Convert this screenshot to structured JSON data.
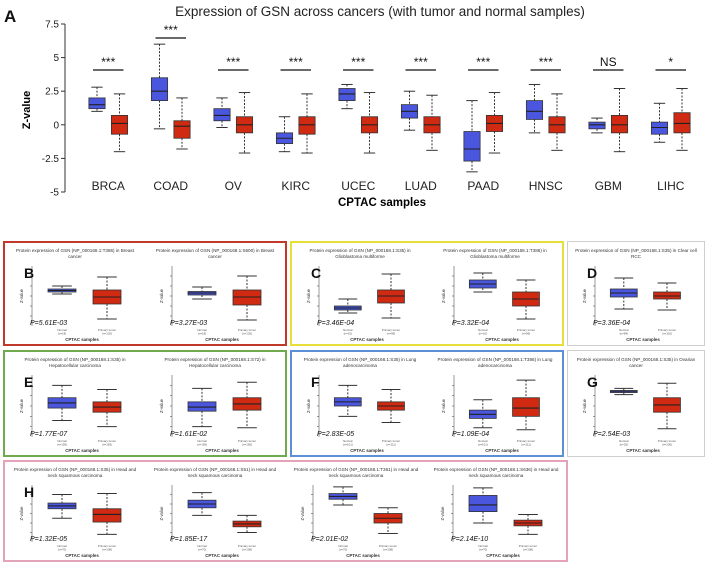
{
  "colors": {
    "tumor": "#d12a12",
    "normal": "#4a56dd",
    "box_red": "#c0392b",
    "box_yellow": "#e8e03a",
    "box_grey": "#cfcfcf",
    "box_green": "#6faa4c",
    "box_blue": "#5b8fd6",
    "box_pink": "#e5a3b9",
    "text_dark": "#1f1f1f"
  },
  "chart_data": [
    {
      "type": "boxplot",
      "id": "main",
      "panel_letter": "A",
      "title": "Expression of GSN across cancers (with tumor and normal samples)",
      "xlabel": "CPTAC samples",
      "ylabel": "Z-value",
      "ylim": [
        -5,
        7.5
      ],
      "yticks": [
        "-5",
        "-2.5",
        "0",
        "2.5",
        "5",
        "7.5"
      ],
      "ytick_values": [
        -5,
        -2.5,
        0,
        2.5,
        5,
        7.5
      ],
      "categories": [
        "BRCA",
        "COAD",
        "OV",
        "KIRC",
        "UCEC",
        "LUAD",
        "PAAD",
        "HNSC",
        "GBM",
        "LIHC"
      ],
      "significance": [
        "***",
        "***",
        "***",
        "***",
        "***",
        "***",
        "***",
        "***",
        "NS",
        "*"
      ],
      "series": [
        {
          "name": "Normal",
          "boxes": [
            {
              "min": 1.0,
              "q1": 1.2,
              "median": 1.5,
              "q3": 2.0,
              "max": 2.8
            },
            {
              "min": -0.3,
              "q1": 1.8,
              "median": 2.5,
              "q3": 3.5,
              "max": 6.0
            },
            {
              "min": -0.2,
              "q1": 0.3,
              "median": 0.7,
              "q3": 1.2,
              "max": 2.0
            },
            {
              "min": -2.0,
              "q1": -1.4,
              "median": -1.0,
              "q3": -0.6,
              "max": 0.6
            },
            {
              "min": 1.2,
              "q1": 1.8,
              "median": 2.3,
              "q3": 2.7,
              "max": 3.0
            },
            {
              "min": -0.4,
              "q1": 0.5,
              "median": 1.0,
              "q3": 1.5,
              "max": 2.5
            },
            {
              "min": -3.5,
              "q1": -2.7,
              "median": -1.8,
              "q3": -0.5,
              "max": 1.8
            },
            {
              "min": -0.6,
              "q1": 0.4,
              "median": 1.0,
              "q3": 1.8,
              "max": 3.0
            },
            {
              "min": -0.6,
              "q1": -0.3,
              "median": 0.0,
              "q3": 0.2,
              "max": 0.5
            },
            {
              "min": -1.3,
              "q1": -0.7,
              "median": -0.2,
              "q3": 0.2,
              "max": 1.6
            }
          ]
        },
        {
          "name": "Tumor",
          "boxes": [
            {
              "min": -2.0,
              "q1": -0.7,
              "median": 0.1,
              "q3": 0.7,
              "max": 2.3
            },
            {
              "min": -1.8,
              "q1": -1.0,
              "median": -0.1,
              "q3": 0.3,
              "max": 2.0
            },
            {
              "min": -2.1,
              "q1": -0.6,
              "median": 0.0,
              "q3": 0.6,
              "max": 2.4
            },
            {
              "min": -2.1,
              "q1": -0.7,
              "median": 0.0,
              "q3": 0.6,
              "max": 2.3
            },
            {
              "min": -2.1,
              "q1": -0.6,
              "median": 0.0,
              "q3": 0.6,
              "max": 2.4
            },
            {
              "min": -1.9,
              "q1": -0.6,
              "median": 0.0,
              "q3": 0.6,
              "max": 2.2
            },
            {
              "min": -2.1,
              "q1": -0.5,
              "median": 0.1,
              "q3": 0.7,
              "max": 2.4
            },
            {
              "min": -1.9,
              "q1": -0.6,
              "median": 0.0,
              "q3": 0.6,
              "max": 2.3
            },
            {
              "min": -2.0,
              "q1": -0.6,
              "median": 0.0,
              "q3": 0.7,
              "max": 2.7
            },
            {
              "min": -1.9,
              "q1": -0.6,
              "median": 0.1,
              "q3": 0.9,
              "max": 2.7
            }
          ]
        }
      ]
    },
    {
      "type": "boxplot",
      "id": "b1",
      "group": "B",
      "panel_letter": "B",
      "title": "Protein expression of GSN (NP_000168.1:T386) in Breast cancer",
      "xlabel": "CPTAC samples",
      "ylabel": "Z-value",
      "pvalue": "P=5.61E-03",
      "labels": [
        "Normal\n(n=18)",
        "Primary tumor\n(n=125)"
      ],
      "ylim": [
        -3,
        3
      ],
      "boxes": [
        {
          "min": 0.2,
          "q1": 0.4,
          "median": 0.55,
          "q3": 0.7,
          "max": 1.0,
          "color": "normal"
        },
        {
          "min": -2.3,
          "q1": -0.8,
          "median": -0.1,
          "q3": 0.6,
          "max": 1.9,
          "color": "tumor"
        }
      ]
    },
    {
      "type": "boxplot",
      "id": "b2",
      "group": "B",
      "title": "Protein expression of GSN (NP_000168.1:S600) in Breast cancer",
      "xlabel": "CPTAC samples",
      "ylabel": "Z-value",
      "pvalue": "P=3.27E-03",
      "labels": [
        "Normal\n(n=18)",
        "Primary tumor\n(n=125)"
      ],
      "ylim": [
        -3,
        3
      ],
      "boxes": [
        {
          "min": -0.3,
          "q1": 0.1,
          "median": 0.3,
          "q3": 0.45,
          "max": 0.9,
          "color": "normal"
        },
        {
          "min": -2.4,
          "q1": -0.9,
          "median": -0.1,
          "q3": 0.6,
          "max": 2.0,
          "color": "tumor"
        }
      ]
    },
    {
      "type": "boxplot",
      "id": "c1",
      "group": "C",
      "panel_letter": "C",
      "title": "Protein expression of GSN (NP_000168.1:S35) in Glioblastoma multiforme",
      "xlabel": "CPTAC samples",
      "ylabel": "Z-value",
      "pvalue": "P=3.46E-04",
      "labels": [
        "Normal\n(n=10)",
        "Primary tumor\n(n=99)"
      ],
      "ylim": [
        -3,
        3
      ],
      "boxes": [
        {
          "min": -1.7,
          "q1": -1.4,
          "median": -1.2,
          "q3": -1.0,
          "max": -0.3,
          "color": "normal"
        },
        {
          "min": -2.2,
          "q1": -0.7,
          "median": 0.0,
          "q3": 0.6,
          "max": 2.2,
          "color": "tumor"
        }
      ]
    },
    {
      "type": "boxplot",
      "id": "c2",
      "group": "C",
      "title": "Protein expression of GSN (NP_000168.1:T386) in Glioblastoma multiforme",
      "xlabel": "CPTAC samples",
      "ylabel": "Z-value",
      "pvalue": "P=3.32E-04",
      "labels": [
        "Normal\n(n=10)",
        "Primary tumor\n(n=99)"
      ],
      "ylim": [
        -3,
        3
      ],
      "boxes": [
        {
          "min": 0.4,
          "q1": 0.8,
          "median": 1.2,
          "q3": 1.6,
          "max": 2.3,
          "color": "normal"
        },
        {
          "min": -2.3,
          "q1": -1.0,
          "median": -0.3,
          "q3": 0.4,
          "max": 1.6,
          "color": "tumor"
        }
      ]
    },
    {
      "type": "boxplot",
      "id": "d1",
      "group": "D",
      "panel_letter": "D",
      "title": "Protein expression of GSN (NP_000168.1:S35) in Clear cell RCC",
      "xlabel": "CPTAC samples",
      "ylabel": "Z-value",
      "pvalue": "P=3.36E-04",
      "labels": [
        "Normal\n(n=84)",
        "Primary tumor\n(n=110)"
      ],
      "ylim": [
        -3,
        3
      ],
      "boxes": [
        {
          "min": -1.3,
          "q1": -0.1,
          "median": 0.3,
          "q3": 0.7,
          "max": 1.8,
          "color": "normal"
        },
        {
          "min": -1.4,
          "q1": -0.3,
          "median": 0.0,
          "q3": 0.4,
          "max": 1.3,
          "color": "tumor"
        }
      ]
    },
    {
      "type": "boxplot",
      "id": "e1",
      "group": "E",
      "panel_letter": "E",
      "title": "Protein expression of GSN (NP_000168.1:S35) in Hepatocellular carcinoma",
      "xlabel": "CPTAC samples",
      "ylabel": "Z-value",
      "pvalue": "P=1.77E-07",
      "labels": [
        "Normal\n(n=159)",
        "Primary tumor\n(n=165)"
      ],
      "ylim": [
        -3,
        3
      ],
      "boxes": [
        {
          "min": -1.4,
          "q1": -0.2,
          "median": 0.3,
          "q3": 0.8,
          "max": 2.0,
          "color": "normal"
        },
        {
          "min": -2.0,
          "q1": -0.6,
          "median": -0.1,
          "q3": 0.4,
          "max": 1.6,
          "color": "tumor"
        }
      ]
    },
    {
      "type": "boxplot",
      "id": "e2",
      "group": "E",
      "title": "Protein expression of GSN (NP_000168.1:S72) in Hepatocellular carcinoma",
      "xlabel": "CPTAC samples",
      "ylabel": "Z-value",
      "pvalue": "P=1.61E-02",
      "labels": [
        "Normal\n(n=159)",
        "Primary tumor\n(n=165)"
      ],
      "ylim": [
        -3,
        3
      ],
      "boxes": [
        {
          "min": -2.0,
          "q1": -0.5,
          "median": -0.1,
          "q3": 0.4,
          "max": 1.7,
          "color": "normal"
        },
        {
          "min": -2.1,
          "q1": -0.4,
          "median": 0.2,
          "q3": 0.8,
          "max": 2.3,
          "color": "tumor"
        }
      ]
    },
    {
      "type": "boxplot",
      "id": "f1",
      "group": "F",
      "panel_letter": "F",
      "title": "Protein expression of GSN (NP_000168.1:S35) in Lung adenocarcinoma",
      "xlabel": "CPTAC samples",
      "ylabel": "Z-value",
      "pvalue": "P=2.83E-05",
      "labels": [
        "Normal\n(n=101)",
        "Primary tumor\n(n=111)"
      ],
      "ylim": [
        -3,
        3
      ],
      "boxes": [
        {
          "min": -1.0,
          "q1": 0.0,
          "median": 0.4,
          "q3": 0.8,
          "max": 2.0,
          "color": "normal"
        },
        {
          "min": -1.6,
          "q1": -0.4,
          "median": 0.0,
          "q3": 0.4,
          "max": 1.6,
          "color": "tumor"
        }
      ]
    },
    {
      "type": "boxplot",
      "id": "f2",
      "group": "F",
      "title": "Protein expression of GSN (NP_000168.1:T386) in Lung adenocarcinoma",
      "xlabel": "CPTAC samples",
      "ylabel": "Z-value",
      "pvalue": "P=1.09E-04",
      "labels": [
        "Normal\n(n=101)",
        "Primary tumor\n(n=111)"
      ],
      "ylim": [
        -3,
        3
      ],
      "boxes": [
        {
          "min": -2.1,
          "q1": -1.2,
          "median": -0.8,
          "q3": -0.4,
          "max": 0.6,
          "color": "normal"
        },
        {
          "min": -2.3,
          "q1": -1.0,
          "median": -0.2,
          "q3": 0.8,
          "max": 2.5,
          "color": "tumor"
        }
      ]
    },
    {
      "type": "boxplot",
      "id": "g1",
      "group": "G",
      "panel_letter": "G",
      "title": "Protein expression of GSN (NP_000168.1:S35) in Ovarian cancer",
      "xlabel": "CPTAC samples",
      "ylabel": "Z-value",
      "pvalue": "P=2.54E-03",
      "labels": [
        "Normal\n(n=25)",
        "Primary tumor\n(n=100)"
      ],
      "ylim": [
        -3,
        3
      ],
      "boxes": [
        {
          "min": 1.1,
          "q1": 1.3,
          "median": 1.45,
          "q3": 1.5,
          "max": 1.7,
          "color": "normal"
        },
        {
          "min": -2.2,
          "q1": -0.6,
          "median": 0.1,
          "q3": 0.8,
          "max": 2.2,
          "color": "tumor"
        }
      ]
    },
    {
      "type": "boxplot",
      "id": "h1",
      "group": "H",
      "panel_letter": "H",
      "title": "Protein expression of GSN (NP_000168.1:S35) in Head and neck squamous carcinoma",
      "xlabel": "CPTAC samples",
      "ylabel": "Z-value",
      "pvalue": "P=1.32E-05",
      "labels": [
        "Normal\n(n=70)",
        "Primary tumor\n(n=108)"
      ],
      "ylim": [
        -3,
        3
      ],
      "boxes": [
        {
          "min": -0.5,
          "q1": 0.5,
          "median": 0.8,
          "q3": 1.1,
          "max": 2.0,
          "color": "normal"
        },
        {
          "min": -2.2,
          "q1": -0.9,
          "median": -0.1,
          "q3": 0.5,
          "max": 2.1,
          "color": "tumor"
        }
      ]
    },
    {
      "type": "boxplot",
      "id": "h2",
      "group": "H",
      "title": "Protein expression of GSN (NP_000168.1:S51) in Head and neck squamous carcinoma",
      "xlabel": "CPTAC samples",
      "ylabel": "Z-value",
      "pvalue": "P=1.85E-17",
      "labels": [
        "Normal\n(n=70)",
        "Primary tumor\n(n=108)"
      ],
      "ylim": [
        -3,
        3
      ],
      "boxes": [
        {
          "min": -0.2,
          "q1": 0.6,
          "median": 1.0,
          "q3": 1.4,
          "max": 2.2,
          "color": "normal"
        },
        {
          "min": -2.0,
          "q1": -1.4,
          "median": -1.1,
          "q3": -0.8,
          "max": -0.2,
          "color": "tumor"
        }
      ]
    },
    {
      "type": "boxplot",
      "id": "h3",
      "group": "H",
      "title": "Protein expression of GSN (NP_000168.1:T361) in Head and neck squamous carcinoma",
      "xlabel": "CPTAC samples",
      "ylabel": "Z-value",
      "pvalue": "P=2.01E-02",
      "labels": [
        "Normal\n(n=70)",
        "Primary tumor\n(n=108)"
      ],
      "ylim": [
        -3,
        3
      ],
      "boxes": [
        {
          "min": 0.9,
          "q1": 1.5,
          "median": 1.8,
          "q3": 2.1,
          "max": 2.8,
          "color": "normal"
        },
        {
          "min": -2.1,
          "q1": -1.0,
          "median": -0.5,
          "q3": 0.0,
          "max": 0.6,
          "color": "tumor"
        }
      ]
    },
    {
      "type": "boxplot",
      "id": "h4",
      "group": "H",
      "title": "Protein expression of GSN (NP_000168.1:S636) in Head and neck squamous carcinoma",
      "xlabel": "CPTAC samples",
      "ylabel": "Z-value",
      "pvalue": "P=2.14E-10",
      "labels": [
        "Normal\n(n=70)",
        "Primary tumor\n(n=108)"
      ],
      "ylim": [
        -3,
        3
      ],
      "boxes": [
        {
          "min": -1.0,
          "q1": 0.2,
          "median": 0.9,
          "q3": 1.9,
          "max": 2.7,
          "color": "normal"
        },
        {
          "min": -2.2,
          "q1": -1.3,
          "median": -1.0,
          "q3": -0.7,
          "max": -0.1,
          "color": "tumor"
        }
      ]
    }
  ]
}
